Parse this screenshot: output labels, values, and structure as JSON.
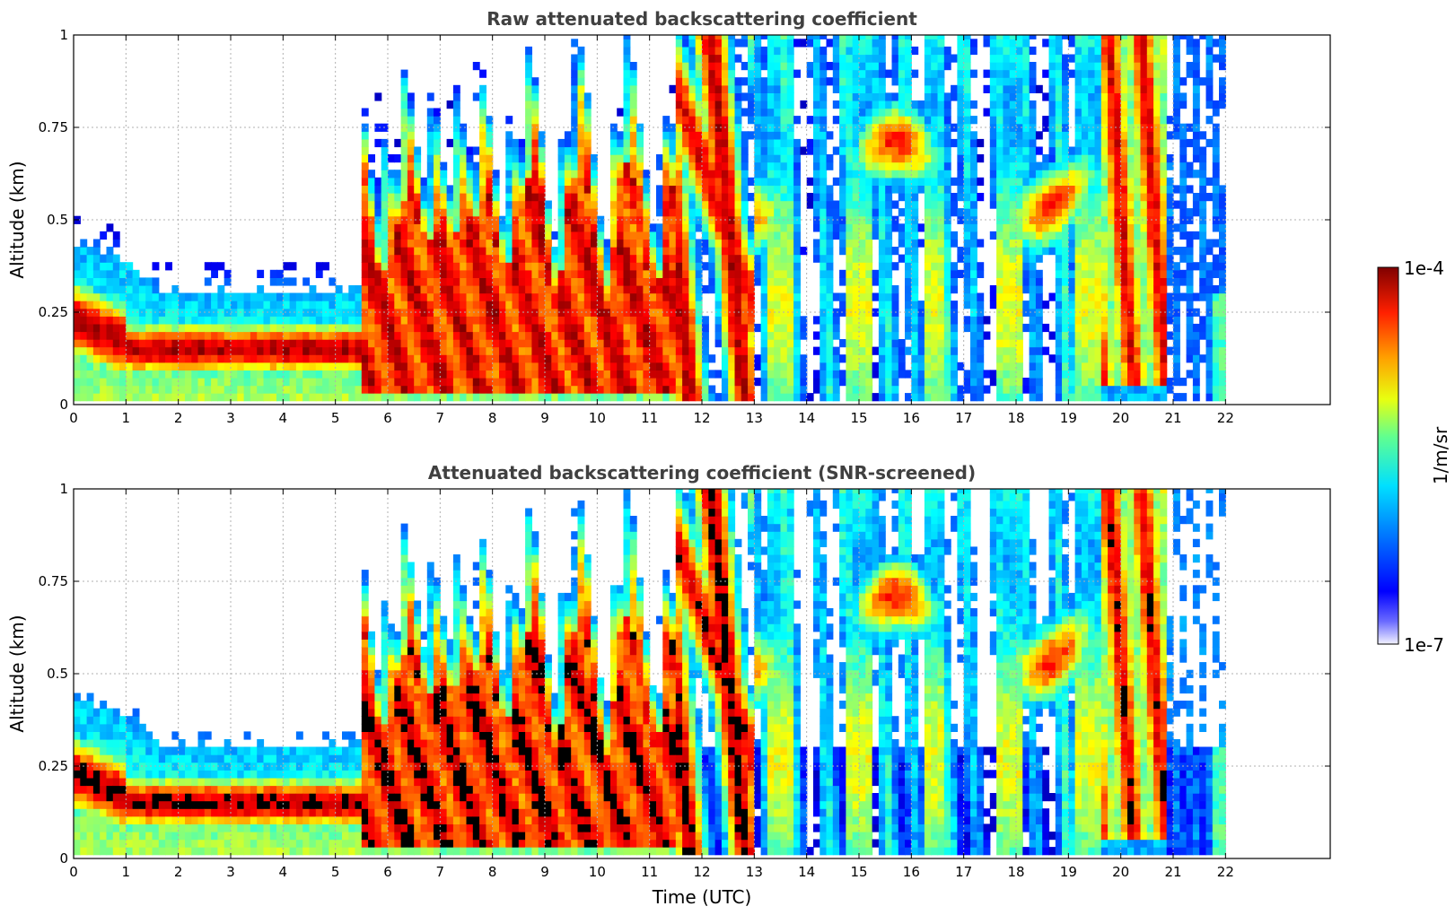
{
  "chart_data": [
    {
      "type": "heatmap",
      "title": "Raw attenuated backscattering coefficient",
      "xlabel": "",
      "ylabel": "Altitude (km)",
      "x_range": [
        0,
        24
      ],
      "xticks": [
        0,
        1,
        2,
        3,
        4,
        5,
        6,
        7,
        8,
        9,
        10,
        11,
        12,
        13,
        14,
        15,
        16,
        17,
        18,
        19,
        20,
        21,
        22
      ],
      "ylim": [
        0,
        1
      ],
      "yticks": [
        0,
        0.25,
        0.5,
        0.75,
        1
      ],
      "ytick_labels": [
        "0",
        "0.25",
        "0.5",
        "0.75",
        "1"
      ],
      "grid": true,
      "color_scale": "log",
      "data_extent_hours": [
        0,
        22
      ],
      "approx_layer_features": [
        {
          "hours": [
            0,
            1
          ],
          "strong_layer_km": [
            0.08,
            0.3
          ],
          "top_km": 0.42
        },
        {
          "hours": [
            1.5,
            5.4
          ],
          "strong_layer_km": [
            0.08,
            0.22
          ],
          "top_km": 0.3
        },
        {
          "hours": [
            5.4,
            11.5
          ],
          "strong_layer_km": [
            0.03,
            0.3
          ],
          "top_km": 0.55
        },
        {
          "hours": [
            11.5,
            13
          ],
          "strong_layer_km": [
            0.3,
            1.0
          ],
          "top_km": 1.0
        },
        {
          "hours": [
            13,
            19.5
          ],
          "strong_layer_km": [
            0.5,
            0.75
          ],
          "top_km": 1.0
        },
        {
          "hours": [
            19.6,
            20.8
          ],
          "strong_layer_km": [
            0.0,
            1.0
          ],
          "top_km": 1.0
        }
      ]
    },
    {
      "type": "heatmap",
      "title": "Attenuated backscattering coefficient (SNR-screened)",
      "xlabel": "Time (UTC)",
      "ylabel": "Altitude (km)",
      "x_range": [
        0,
        24
      ],
      "xticks": [
        0,
        1,
        2,
        3,
        4,
        5,
        6,
        7,
        8,
        9,
        10,
        11,
        12,
        13,
        14,
        15,
        16,
        17,
        18,
        19,
        20,
        21,
        22
      ],
      "ylim": [
        0,
        1
      ],
      "yticks": [
        0,
        0.25,
        0.5,
        0.75,
        1
      ],
      "ytick_labels": [
        "0",
        "0.25",
        "0.5",
        "0.75",
        "1"
      ],
      "grid": true,
      "color_scale": "log",
      "data_extent_hours": [
        0,
        22
      ],
      "saturated_color": "#000000"
    }
  ],
  "colorbar": {
    "label": "1/m/sr",
    "max_label": "1e-4",
    "min_label": "1e-7",
    "min": 1e-07,
    "max": 0.0001,
    "colormap": "jet"
  },
  "colors": {
    "title": "#404040",
    "grid": "#b0b0b0",
    "saturated": "#000000"
  }
}
